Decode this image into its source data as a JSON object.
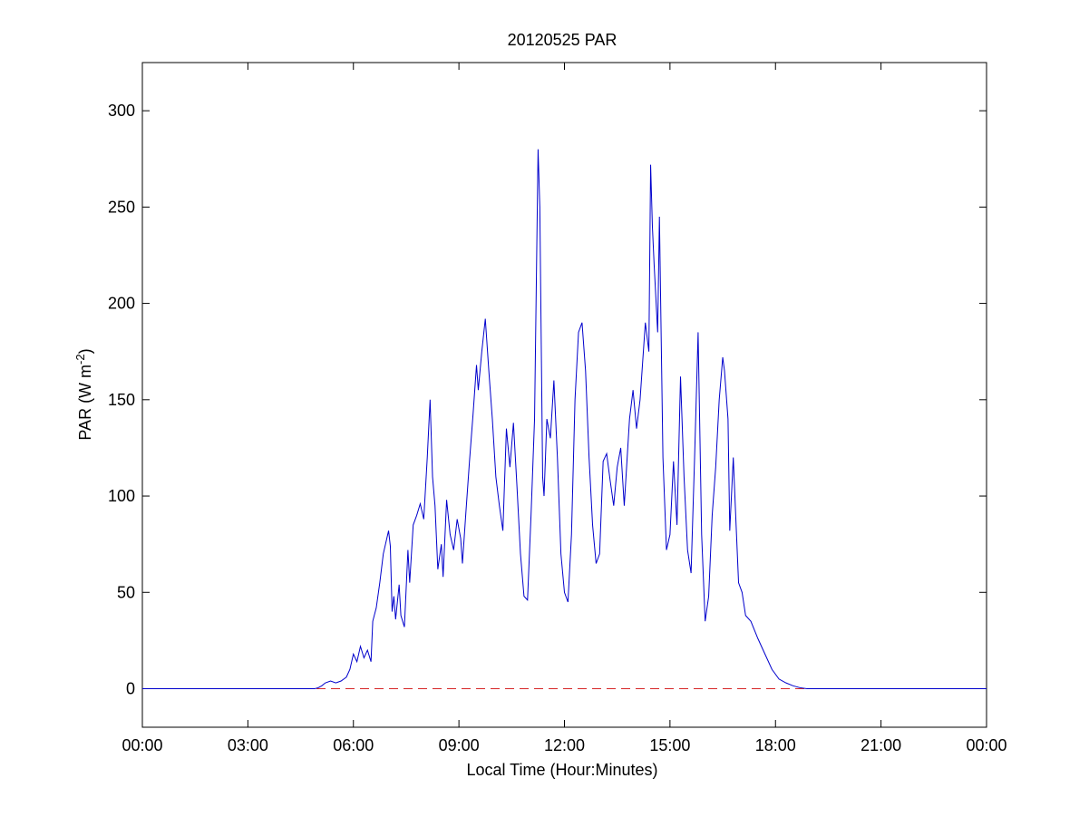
{
  "chart_data": {
    "type": "line",
    "title": "20120525 PAR",
    "xlabel": "Local Time (Hour:Minutes)",
    "ylabel": {
      "main": "PAR (W m",
      "superscript": "-2",
      "close": ")"
    },
    "xlim": [
      0,
      24
    ],
    "ylim": [
      -20,
      325
    ],
    "x_ticks": [
      {
        "value": 0,
        "label": "00:00"
      },
      {
        "value": 3,
        "label": "03:00"
      },
      {
        "value": 6,
        "label": "06:00"
      },
      {
        "value": 9,
        "label": "09:00"
      },
      {
        "value": 12,
        "label": "12:00"
      },
      {
        "value": 15,
        "label": "15:00"
      },
      {
        "value": 18,
        "label": "18:00"
      },
      {
        "value": 21,
        "label": "21:00"
      },
      {
        "value": 24,
        "label": "00:00"
      }
    ],
    "y_ticks": [
      {
        "value": 0,
        "label": "0"
      },
      {
        "value": 50,
        "label": "50"
      },
      {
        "value": 100,
        "label": "100"
      },
      {
        "value": 150,
        "label": "150"
      },
      {
        "value": 200,
        "label": "200"
      },
      {
        "value": 250,
        "label": "250"
      },
      {
        "value": 300,
        "label": "300"
      }
    ],
    "grid": false,
    "reference_line": {
      "y": 0,
      "color": "#d62728",
      "style": "dashed"
    },
    "series": [
      {
        "color": "#0000cc",
        "points": [
          [
            0,
            0
          ],
          [
            4.9,
            0
          ],
          [
            5.0,
            0.5
          ],
          [
            5.1,
            1.5
          ],
          [
            5.2,
            3
          ],
          [
            5.35,
            4
          ],
          [
            5.5,
            3
          ],
          [
            5.65,
            4
          ],
          [
            5.8,
            6
          ],
          [
            5.9,
            10
          ],
          [
            6.0,
            18
          ],
          [
            6.1,
            14
          ],
          [
            6.2,
            22
          ],
          [
            6.3,
            16
          ],
          [
            6.4,
            20
          ],
          [
            6.5,
            14
          ],
          [
            6.55,
            35
          ],
          [
            6.65,
            42
          ],
          [
            6.75,
            55
          ],
          [
            6.85,
            70
          ],
          [
            6.95,
            78
          ],
          [
            7.0,
            82
          ],
          [
            7.05,
            74
          ],
          [
            7.1,
            40
          ],
          [
            7.15,
            48
          ],
          [
            7.2,
            36
          ],
          [
            7.3,
            54
          ],
          [
            7.35,
            38
          ],
          [
            7.45,
            32
          ],
          [
            7.55,
            72
          ],
          [
            7.6,
            55
          ],
          [
            7.7,
            85
          ],
          [
            7.8,
            90
          ],
          [
            7.9,
            96
          ],
          [
            8.0,
            88
          ],
          [
            8.1,
            120
          ],
          [
            8.18,
            150
          ],
          [
            8.25,
            110
          ],
          [
            8.32,
            95
          ],
          [
            8.4,
            62
          ],
          [
            8.5,
            75
          ],
          [
            8.55,
            58
          ],
          [
            8.65,
            98
          ],
          [
            8.75,
            80
          ],
          [
            8.85,
            72
          ],
          [
            8.95,
            88
          ],
          [
            9.05,
            78
          ],
          [
            9.1,
            65
          ],
          [
            9.2,
            92
          ],
          [
            9.3,
            118
          ],
          [
            9.4,
            142
          ],
          [
            9.5,
            168
          ],
          [
            9.55,
            155
          ],
          [
            9.65,
            175
          ],
          [
            9.75,
            192
          ],
          [
            9.85,
            165
          ],
          [
            9.95,
            140
          ],
          [
            10.05,
            110
          ],
          [
            10.15,
            95
          ],
          [
            10.25,
            82
          ],
          [
            10.35,
            135
          ],
          [
            10.45,
            115
          ],
          [
            10.55,
            138
          ],
          [
            10.65,
            105
          ],
          [
            10.75,
            70
          ],
          [
            10.85,
            48
          ],
          [
            10.95,
            46
          ],
          [
            11.05,
            90
          ],
          [
            11.15,
            140
          ],
          [
            11.25,
            280
          ],
          [
            11.3,
            250
          ],
          [
            11.38,
            110
          ],
          [
            11.42,
            100
          ],
          [
            11.5,
            140
          ],
          [
            11.6,
            130
          ],
          [
            11.7,
            160
          ],
          [
            11.8,
            120
          ],
          [
            11.9,
            70
          ],
          [
            12.0,
            50
          ],
          [
            12.1,
            45
          ],
          [
            12.2,
            80
          ],
          [
            12.3,
            150
          ],
          [
            12.4,
            185
          ],
          [
            12.5,
            190
          ],
          [
            12.6,
            165
          ],
          [
            12.7,
            120
          ],
          [
            12.8,
            85
          ],
          [
            12.9,
            65
          ],
          [
            13.0,
            70
          ],
          [
            13.1,
            118
          ],
          [
            13.2,
            122
          ],
          [
            13.3,
            108
          ],
          [
            13.4,
            95
          ],
          [
            13.5,
            115
          ],
          [
            13.6,
            125
          ],
          [
            13.7,
            95
          ],
          [
            13.85,
            140
          ],
          [
            13.95,
            155
          ],
          [
            14.05,
            135
          ],
          [
            14.15,
            150
          ],
          [
            14.3,
            190
          ],
          [
            14.4,
            175
          ],
          [
            14.45,
            272
          ],
          [
            14.5,
            240
          ],
          [
            14.55,
            220
          ],
          [
            14.65,
            185
          ],
          [
            14.7,
            245
          ],
          [
            14.8,
            120
          ],
          [
            14.9,
            72
          ],
          [
            15.0,
            80
          ],
          [
            15.1,
            118
          ],
          [
            15.2,
            85
          ],
          [
            15.3,
            162
          ],
          [
            15.4,
            110
          ],
          [
            15.5,
            72
          ],
          [
            15.6,
            60
          ],
          [
            15.7,
            120
          ],
          [
            15.8,
            185
          ],
          [
            15.9,
            80
          ],
          [
            16.0,
            35
          ],
          [
            16.1,
            48
          ],
          [
            16.2,
            90
          ],
          [
            16.3,
            115
          ],
          [
            16.4,
            150
          ],
          [
            16.5,
            172
          ],
          [
            16.55,
            165
          ],
          [
            16.65,
            140
          ],
          [
            16.7,
            82
          ],
          [
            16.8,
            120
          ],
          [
            16.88,
            85
          ],
          [
            16.95,
            55
          ],
          [
            17.05,
            50
          ],
          [
            17.15,
            38
          ],
          [
            17.3,
            35
          ],
          [
            17.5,
            26
          ],
          [
            17.7,
            18
          ],
          [
            17.9,
            10
          ],
          [
            18.1,
            5
          ],
          [
            18.3,
            3
          ],
          [
            18.5,
            1.5
          ],
          [
            18.7,
            0.5
          ],
          [
            18.9,
            0
          ],
          [
            24,
            0
          ]
        ]
      }
    ]
  }
}
